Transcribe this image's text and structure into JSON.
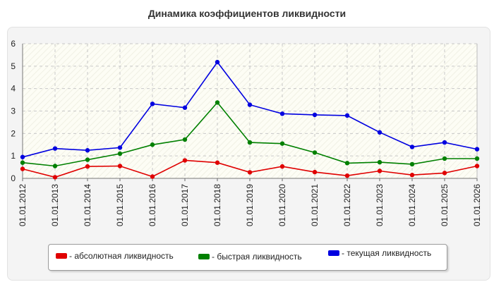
{
  "chart_data": {
    "type": "line",
    "title": "Динамика коэффициентов ликвидности",
    "xlabel": "",
    "ylabel": "",
    "ylim": [
      0,
      6
    ],
    "yticks": [
      "0",
      "1",
      "2",
      "3",
      "4",
      "5",
      "6"
    ],
    "grid": true,
    "legend_position": "bottom",
    "categories": [
      "01.01.2012",
      "01.01.2013",
      "01.01.2014",
      "01.01.2015",
      "01.01.2016",
      "01.01.2017",
      "01.01.2018",
      "01.01.2019",
      "01.01.2020",
      "01.01.2021",
      "01.01.2022",
      "01.01.2023",
      "01.01.2024",
      "01.01.2025",
      "01.01.2026"
    ],
    "series": [
      {
        "name": "абсолютная ликвидность",
        "legend_label": "- абсолютная ликвидность",
        "color": "#e00000",
        "values": [
          0.42,
          0.05,
          0.53,
          0.55,
          0.08,
          0.8,
          0.7,
          0.27,
          0.53,
          0.28,
          0.12,
          0.33,
          0.15,
          0.24,
          0.55
        ]
      },
      {
        "name": "быстрая ликвидность",
        "legend_label": "- быстрая ликвидность",
        "color": "#008000",
        "values": [
          0.7,
          0.55,
          0.83,
          1.1,
          1.5,
          1.73,
          3.38,
          1.6,
          1.55,
          1.15,
          0.68,
          0.72,
          0.63,
          0.88,
          0.88
        ]
      },
      {
        "name": "текущая ликвидность",
        "legend_label": "- текущая ликвидность",
        "color": "#0000e0",
        "values": [
          0.95,
          1.33,
          1.25,
          1.37,
          3.32,
          3.15,
          5.18,
          3.28,
          2.88,
          2.83,
          2.8,
          2.05,
          1.4,
          1.6,
          1.3
        ]
      }
    ]
  }
}
